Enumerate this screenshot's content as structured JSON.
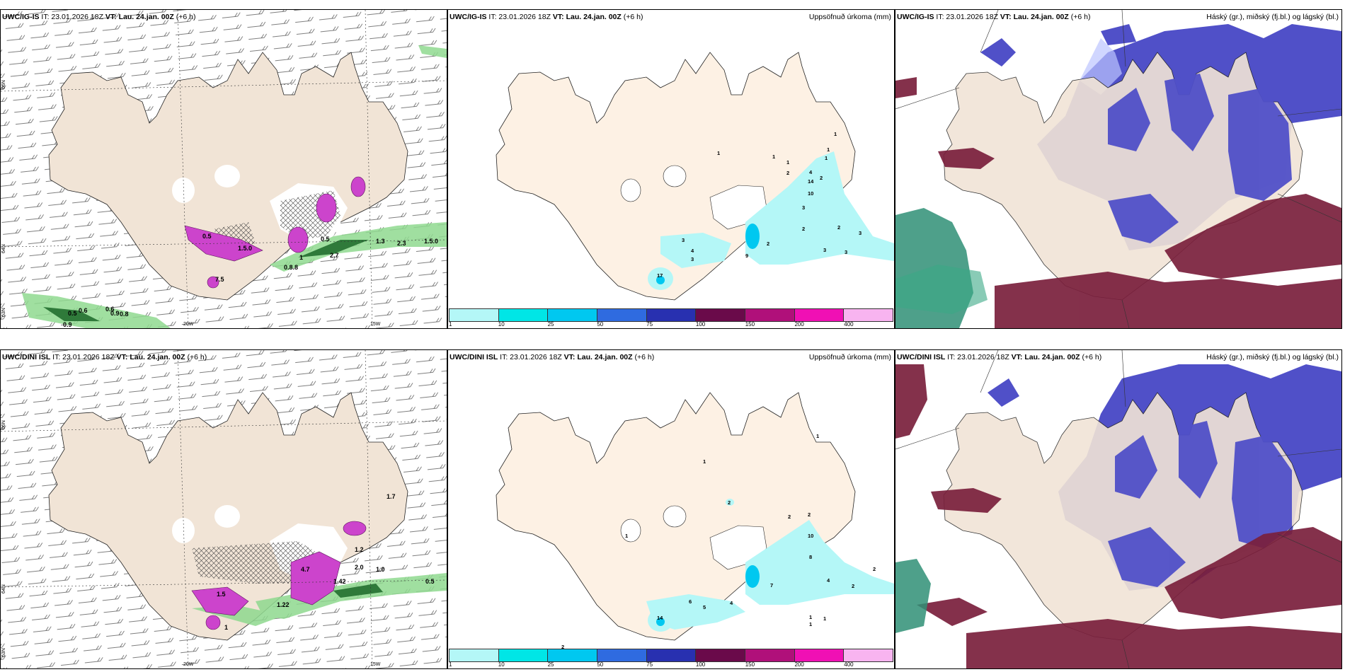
{
  "panels": [
    {
      "model": "UWC/IG-IS",
      "it": "IT: 23.01.2026 18Z",
      "vt_label": "VT:",
      "vt": "Lau. 24.jan. 00Z",
      "lead": "(+6 h)",
      "right": ""
    },
    {
      "model": "UWC/IG-IS",
      "it": "IT: 23.01.2026 18Z",
      "vt_label": "VT:",
      "vt": "Lau. 24.jan. 00Z",
      "lead": "(+6 h)",
      "right": "Uppsöfnuð úrkoma (mm)"
    },
    {
      "model": "UWC/IG-IS",
      "it": "IT: 23.01.2026 18Z",
      "vt_label": "VT:",
      "vt": "Lau. 24.jan. 00Z",
      "lead": "(+6 h)",
      "right": "Háský (gr.), miðský (fj.bl.) og lágský (bl.)"
    },
    {
      "model": "UWC/DINI ISL",
      "it": "IT: 23.01.2026 18Z",
      "vt_label": "VT:",
      "vt": "Lau. 24.jan. 00Z",
      "lead": "(+6 h)",
      "right": ""
    },
    {
      "model": "UWC/DINI ISL",
      "it": "IT: 23.01.2026 18Z",
      "vt_label": "VT:",
      "vt": "Lau. 24.jan. 00Z",
      "lead": "(+6 h)",
      "right": "Uppsöfnuð úrkoma (mm)"
    },
    {
      "model": "UWC/DINI ISL",
      "it": "IT: 23.01.2026 18Z",
      "vt_label": "VT:",
      "vt": "Lau. 24.jan. 00Z",
      "lead": "(+6 h)",
      "right": "Háský (gr.), miðský (fj.bl.) og lágský (bl.)"
    }
  ],
  "axes": {
    "lon_20": "20W",
    "lon_15": "15W",
    "lat_66": "66N",
    "lat_64": "64N",
    "lat_63": "63N"
  },
  "legend": {
    "labels": [
      "1",
      "10",
      "25",
      "50",
      "75",
      "100",
      "150",
      "200",
      "400"
    ],
    "colors": [
      "#b4f7f7",
      "#00e6e6",
      "#00c8f0",
      "#2f6be0",
      "#2830b0",
      "#6a0a4a",
      "#b0107a",
      "#f010b4",
      "#f8b4f0"
    ]
  },
  "colors": {
    "land": "#f1e4d6",
    "land_precip": "#fdf1e4",
    "green": "#8fd98f",
    "magenta": "#cc44cc",
    "cyan": "#b4f5f5",
    "blue": "#5050c8",
    "maroon": "#7a1f3c",
    "teal": "#2f8f76",
    "pale_blue": "#bcc4ff"
  },
  "precip_top": [
    "1",
    "1",
    "1",
    "1",
    "2",
    "4",
    "14",
    "10",
    "3",
    "1",
    "2",
    "2",
    "2",
    "3",
    "3",
    "3",
    "3",
    "4",
    "3",
    "9",
    "17",
    "1",
    "2"
  ],
  "precip_bot": [
    "1",
    "1",
    "2",
    "2",
    "2",
    "10",
    "8",
    "7",
    "4",
    "2",
    "2",
    "6",
    "5",
    "4",
    "14",
    "1",
    "1",
    "1",
    "2",
    "1"
  ],
  "sn_top": [
    "0.5",
    "0.6",
    "0.6",
    "0.9",
    "0.8",
    "0.9",
    "0.5",
    "0.5",
    "0.8.8",
    "2.7",
    "1.3",
    "2.3",
    "1.5.0",
    "7.5",
    "1.5.0",
    "1"
  ],
  "sn_bot": [
    "1.7",
    "1.2",
    "1.0",
    "0.5",
    "1.42",
    "2.0",
    "1.22",
    "1.5",
    "4.7",
    "1"
  ]
}
